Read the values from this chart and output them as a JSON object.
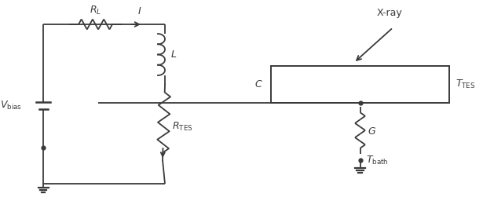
{
  "fig_width": 6.15,
  "fig_height": 2.56,
  "dpi": 100,
  "bg_color": "#ffffff",
  "line_color": "#3a3a3a",
  "line_width": 1.3,
  "font_size": 9.0
}
